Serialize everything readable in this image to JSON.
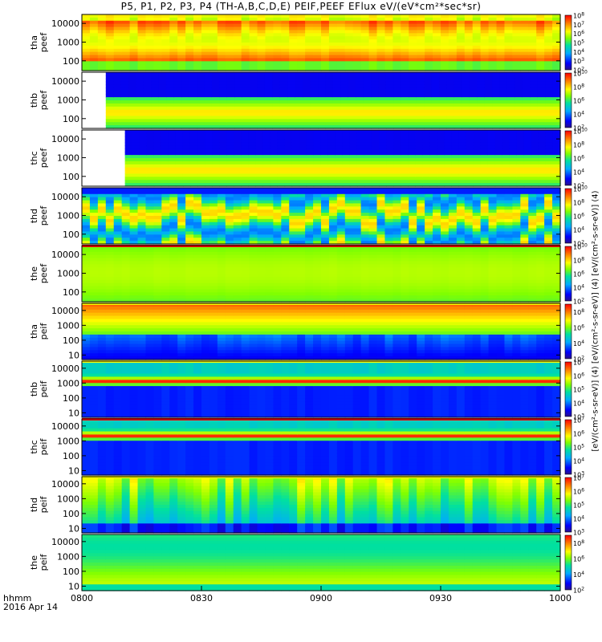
{
  "title": "P5, P1, P2, P3, P4 (TH-A,B,C,D,E) PEIF,PEEF EFlux eV/(eV*cm²*sec*sr)",
  "colorbar_unit": "[eV/(cm²-s-sr-eV)] (4) [eV/(cm²-s-sr-eV)] (4) [eV/(cm²-s-sr-eV)] (4)",
  "footer": {
    "time_label": "hhmm",
    "date_label": "2016 Apr 14"
  },
  "colors": {
    "accent_red": "#ff0000",
    "accent_yellow": "#ffff00",
    "frame": "#000000"
  },
  "chart_data": {
    "type": "heatmap",
    "xlabel": "",
    "x_ticks": [
      "0800",
      "0830",
      "0900",
      "0930",
      "1000"
    ],
    "x_range_minutes": [
      0,
      120
    ],
    "y_scale": "log",
    "panels": [
      {
        "ylabel": [
          "tha",
          "peef"
        ],
        "y_ticks": [
          "10000",
          "1000",
          "100"
        ],
        "y_range": [
          30,
          30000
        ],
        "cbar_exp": [
          2,
          8
        ],
        "pattern": "hot_electron",
        "data_start": 0,
        "band": [
          0.45,
          0.85
        ],
        "variability": 0.25,
        "bar": "none"
      },
      {
        "ylabel": [
          "thb",
          "peef"
        ],
        "y_ticks": [
          "10000",
          "1000",
          "100"
        ],
        "y_range": [
          30,
          30000
        ],
        "cbar_exp": [
          2,
          10
        ],
        "pattern": "steady_electron",
        "data_start": 0.05,
        "band": [
          0.15,
          0.55
        ],
        "variability": 0.1,
        "bar": "none"
      },
      {
        "ylabel": [
          "thc",
          "peef"
        ],
        "y_ticks": [
          "10000",
          "1000",
          "100"
        ],
        "y_range": [
          30,
          30000
        ],
        "cbar_exp": [
          2,
          10
        ],
        "pattern": "steady_electron",
        "data_start": 0.09,
        "band": [
          0.15,
          0.55
        ],
        "variability": 0.1,
        "bar": "none"
      },
      {
        "ylabel": [
          "thd",
          "peef"
        ],
        "y_ticks": [
          "10000",
          "1000",
          "100"
        ],
        "y_range": [
          30,
          30000
        ],
        "cbar_exp": [
          2,
          10
        ],
        "pattern": "dynamic_electron",
        "data_start": 0,
        "band": [
          0.2,
          0.9
        ],
        "variability": 0.6,
        "bar": "none"
      },
      {
        "ylabel": [
          "the",
          "peef"
        ],
        "y_ticks": [
          "10000",
          "1000",
          "100"
        ],
        "y_range": [
          30,
          30000
        ],
        "cbar_exp": [
          2,
          10
        ],
        "pattern": "flat_electron",
        "data_start": 0,
        "band": [
          0.5,
          0.65
        ],
        "variability": 0.08,
        "bar": "red"
      },
      {
        "ylabel": [
          "tha",
          "peif"
        ],
        "y_ticks": [
          "10000",
          "1000",
          "100",
          "10"
        ],
        "y_range": [
          5,
          30000
        ],
        "cbar_exp": [
          2,
          9
        ],
        "pattern": "ion",
        "data_start": 0,
        "band": [
          0.35,
          0.85
        ],
        "variability": 0.4,
        "bar": "yellow"
      },
      {
        "ylabel": [
          "thb",
          "peif"
        ],
        "y_ticks": [
          "10000",
          "1000",
          "100",
          "10"
        ],
        "y_range": [
          5,
          30000
        ],
        "cbar_exp": [
          3,
          7
        ],
        "pattern": "ion_stripe",
        "data_start": 0,
        "band": [
          0.55,
          0.75
        ],
        "variability": 0.2,
        "bar": "yellow"
      },
      {
        "ylabel": [
          "thc",
          "peif"
        ],
        "y_ticks": [
          "10000",
          "1000",
          "100",
          "10"
        ],
        "y_range": [
          5,
          30000
        ],
        "cbar_exp": [
          3,
          7
        ],
        "pattern": "ion_stripe",
        "data_start": 0,
        "band": [
          0.62,
          0.8
        ],
        "variability": 0.2,
        "bar": "red"
      },
      {
        "ylabel": [
          "thd",
          "peif"
        ],
        "y_ticks": [
          "10000",
          "1000",
          "100",
          "10"
        ],
        "y_range": [
          5,
          30000
        ],
        "cbar_exp": [
          3,
          7
        ],
        "pattern": "ion_burst",
        "data_start": 0,
        "band": [
          0.3,
          0.75
        ],
        "variability": 0.7,
        "bar": "yellow"
      },
      {
        "ylabel": [
          "the",
          "peif"
        ],
        "y_ticks": [
          "10000",
          "1000",
          "100",
          "10"
        ],
        "y_range": [
          5,
          30000
        ],
        "cbar_exp": [
          2,
          9
        ],
        "pattern": "flat_ion",
        "data_start": 0,
        "band": [
          0.4,
          0.6
        ],
        "variability": 0.1,
        "bar": "none"
      }
    ]
  }
}
